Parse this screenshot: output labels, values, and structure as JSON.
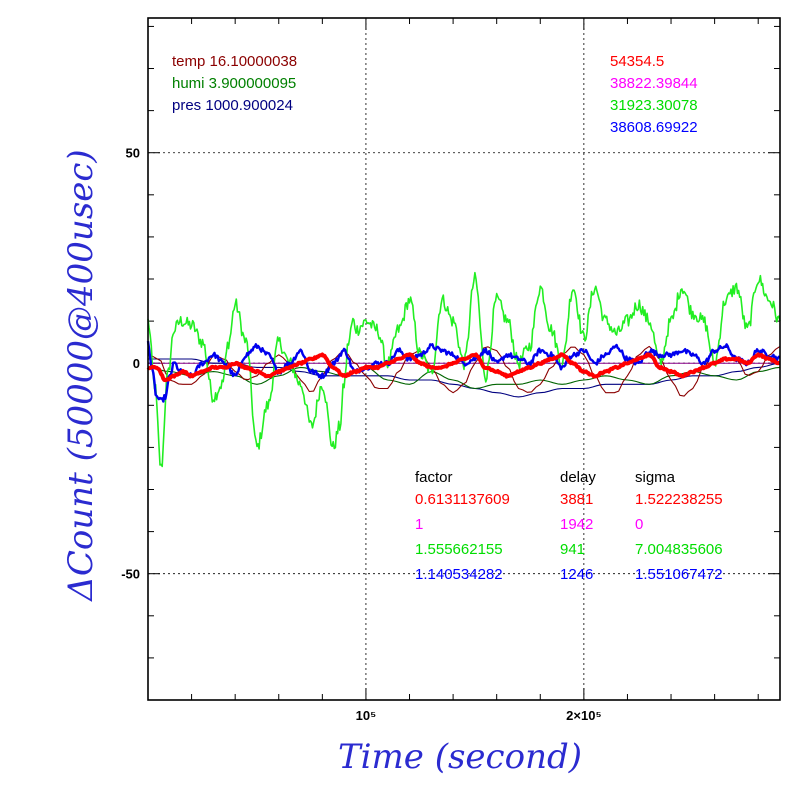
{
  "chart_data": {
    "type": "line",
    "xlabel": "Time (second)",
    "ylabel": "ΔCount (50000@400usec)",
    "xlim": [
      0,
      290000
    ],
    "ylim": [
      -80,
      82
    ],
    "x_ticks": [
      {
        "value": 100000,
        "label": "10⁵"
      },
      {
        "value": 200000,
        "label": "2×10⁵"
      }
    ],
    "y_ticks": [
      {
        "value": 50,
        "label": "50"
      },
      {
        "value": 0,
        "label": "0"
      },
      {
        "value": -50,
        "label": "-50"
      }
    ],
    "grid": true,
    "env": [
      {
        "label": "temp 16.10000038",
        "color": "#8b0000"
      },
      {
        "label": "humi 3.900000095",
        "color": "#008000"
      },
      {
        "label": "pres 1000.900024",
        "color": "#000080"
      }
    ],
    "counts": [
      {
        "label": "54354.5",
        "color": "#ff0000"
      },
      {
        "label": "38822.39844",
        "color": "#ff00ff"
      },
      {
        "label": "31923.30078",
        "color": "#00dd00"
      },
      {
        "label": "38608.69922",
        "color": "#0000ff"
      }
    ],
    "fit_table": {
      "headers": [
        "factor",
        "delay",
        "sigma"
      ],
      "rows": [
        {
          "factor": "0.6131137609",
          "delay": "3881",
          "sigma": "1.522238255",
          "color": "#ff0000"
        },
        {
          "factor": "1",
          "delay": "1942",
          "sigma": "0",
          "color": "#ff00ff"
        },
        {
          "factor": "1.555662155",
          "delay": "941",
          "sigma": "7.004835606",
          "color": "#00dd00"
        },
        {
          "factor": "1.140534282",
          "delay": "1246",
          "sigma": "1.551067472",
          "color": "#0000ff"
        }
      ]
    },
    "series": [
      {
        "key": "green",
        "color": "#22ee22",
        "width": 1.6,
        "noise": 1.6,
        "x": [
          0,
          3000,
          6000,
          9000,
          12000,
          15000,
          20000,
          25000,
          30000,
          34000,
          37000,
          40000,
          45000,
          50000,
          55000,
          60000,
          65000,
          70000,
          75000,
          80000,
          85000,
          88000,
          90000,
          92000,
          94000,
          96000,
          98000,
          100000,
          105000,
          110000,
          115000,
          120000,
          125000,
          130000,
          135000,
          140000,
          145000,
          150000,
          155000,
          160000,
          165000,
          170000,
          175000,
          180000,
          185000,
          190000,
          195000,
          200000,
          205000,
          210000,
          215000,
          220000,
          225000,
          230000,
          235000,
          240000,
          245000,
          250000,
          255000,
          260000,
          265000,
          270000,
          275000,
          280000,
          285000,
          290000
        ],
        "y": [
          10,
          -5,
          -25,
          -3,
          8,
          10,
          9,
          5,
          -8,
          -5,
          5,
          14,
          5,
          -20,
          -10,
          5,
          0,
          -5,
          -15,
          -5,
          -20,
          -15,
          -5,
          5,
          10,
          8,
          9,
          10,
          8,
          0,
          8,
          15,
          2,
          -2,
          15,
          10,
          0,
          20,
          -3,
          15,
          10,
          0,
          4,
          18,
          8,
          0,
          18,
          6,
          18,
          10,
          7,
          10,
          14,
          10,
          0,
          10,
          18,
          12,
          10,
          0,
          15,
          18,
          8,
          20,
          15,
          10
        ]
      },
      {
        "key": "blue",
        "color": "#0000ee",
        "width": 2.4,
        "noise": 0.6,
        "x": [
          0,
          2000,
          4000,
          6000,
          8000,
          10000,
          12000,
          15000,
          20000,
          25000,
          30000,
          35000,
          40000,
          45000,
          50000,
          55000,
          60000,
          65000,
          70000,
          75000,
          80000,
          85000,
          90000,
          95000,
          100000,
          105000,
          110000,
          115000,
          120000,
          125000,
          130000,
          135000,
          140000,
          145000,
          150000,
          155000,
          160000,
          165000,
          170000,
          175000,
          180000,
          185000,
          190000,
          195000,
          200000,
          205000,
          210000,
          215000,
          220000,
          225000,
          230000,
          235000,
          240000,
          245000,
          250000,
          255000,
          260000,
          265000,
          270000,
          275000,
          280000,
          285000,
          290000
        ],
        "y": [
          5,
          -2,
          -8,
          -9,
          -8,
          -3,
          0,
          -2,
          -3,
          0,
          2,
          0,
          -3,
          2,
          4,
          2,
          -2,
          0,
          3,
          -2,
          -3,
          0,
          3,
          -2,
          -1,
          0,
          0,
          3,
          1,
          2,
          4,
          3,
          2,
          0,
          1,
          3,
          0,
          2,
          1,
          0,
          3,
          2,
          -1,
          2,
          3,
          0,
          2,
          4,
          1,
          0,
          3,
          2,
          2,
          3,
          2,
          0,
          3,
          4,
          1,
          0,
          3,
          2,
          1
        ]
      },
      {
        "key": "red",
        "color": "#ff0000",
        "width": 4,
        "noise": 0.2,
        "x": [
          0,
          4000,
          8000,
          12000,
          16000,
          20000,
          25000,
          30000,
          35000,
          40000,
          45000,
          50000,
          55000,
          60000,
          65000,
          70000,
          75000,
          80000,
          85000,
          90000,
          95000,
          100000,
          105000,
          110000,
          115000,
          120000,
          125000,
          130000,
          135000,
          140000,
          145000,
          150000,
          155000,
          160000,
          165000,
          170000,
          175000,
          180000,
          185000,
          190000,
          195000,
          200000,
          205000,
          210000,
          215000,
          220000,
          225000,
          230000,
          235000,
          240000,
          245000,
          250000,
          255000,
          260000,
          265000,
          270000,
          275000,
          280000,
          285000,
          290000
        ],
        "y": [
          -1,
          -1,
          -4,
          -3,
          -2,
          -3,
          -2,
          -1,
          -1,
          0,
          -1,
          -2,
          -3,
          -2,
          -1,
          0,
          1,
          2,
          -1,
          -3,
          -2,
          -1,
          -1,
          0,
          1,
          2,
          0,
          -1,
          -1,
          0,
          1,
          2,
          -1,
          -2,
          -3,
          -2,
          -1,
          0,
          1,
          2,
          0,
          -2,
          -3,
          -2,
          -1,
          0,
          1,
          2,
          -1,
          -2,
          -3,
          -2,
          -1,
          0,
          1,
          1,
          0,
          2,
          1,
          0
        ]
      },
      {
        "key": "darkred",
        "color": "#8b0000",
        "width": 1.1,
        "noise": 0,
        "x": [
          0,
          5000,
          10000,
          15000,
          20000,
          25000,
          30000,
          35000,
          40000,
          45000,
          50000,
          55000,
          60000,
          65000,
          70000,
          75000,
          80000,
          85000,
          90000,
          95000,
          100000,
          105000,
          110000,
          115000,
          120000,
          125000,
          130000,
          135000,
          140000,
          145000,
          150000,
          155000,
          160000,
          165000,
          170000,
          175000,
          180000,
          185000,
          190000,
          195000,
          200000,
          205000,
          210000,
          215000,
          220000,
          225000,
          230000,
          235000,
          240000,
          245000,
          250000,
          255000,
          260000,
          265000,
          270000,
          275000,
          280000,
          285000,
          290000
        ],
        "y": [
          2,
          1,
          -4,
          -5,
          -5,
          -3,
          2,
          1,
          -2,
          -4,
          -3,
          0,
          2,
          0,
          -4,
          -7,
          -3,
          1,
          3,
          0,
          -3,
          -6,
          -6,
          -2,
          2,
          3,
          -1,
          -5,
          -7,
          -5,
          0,
          4,
          3,
          -1,
          -6,
          -7,
          -5,
          -1,
          2,
          4,
          2,
          -3,
          -7,
          -7,
          -3,
          2,
          4,
          1,
          -4,
          -8,
          -6,
          -1,
          3,
          4,
          1,
          -3,
          -2,
          2,
          4
        ]
      },
      {
        "key": "darkgreen",
        "color": "#006400",
        "width": 1.1,
        "noise": 0,
        "x": [
          0,
          10000,
          20000,
          30000,
          40000,
          50000,
          60000,
          70000,
          80000,
          90000,
          100000,
          110000,
          120000,
          130000,
          140000,
          150000,
          160000,
          170000,
          180000,
          190000,
          200000,
          210000,
          220000,
          230000,
          240000,
          250000,
          260000,
          270000,
          280000,
          290000
        ],
        "y": [
          -1,
          -2,
          -3,
          -2,
          -3,
          -5,
          -3,
          -1,
          -2,
          -3,
          -1,
          -4,
          -5,
          -2,
          -4,
          -6,
          -5,
          -5,
          -4,
          -5,
          -4,
          -3,
          -4,
          -5,
          -3,
          -2,
          -3,
          -4,
          -2,
          -1
        ]
      },
      {
        "key": "navy",
        "color": "#000080",
        "width": 1.1,
        "noise": 0,
        "x": [
          0,
          10000,
          20000,
          30000,
          40000,
          50000,
          60000,
          70000,
          80000,
          90000,
          100000,
          110000,
          120000,
          130000,
          140000,
          150000,
          160000,
          170000,
          180000,
          190000,
          200000,
          210000,
          220000,
          230000,
          240000,
          250000,
          260000,
          270000,
          280000,
          290000
        ],
        "y": [
          1,
          1,
          1,
          0,
          0,
          -1,
          -1,
          -2,
          -3,
          -3,
          -3,
          -3,
          -4,
          -4,
          -5,
          -6,
          -7,
          -8,
          -7,
          -6,
          -6,
          -5,
          -5,
          -5,
          -4,
          -3,
          -3,
          -2,
          -1,
          0
        ]
      },
      {
        "key": "violet",
        "color": "#880088",
        "width": 1,
        "noise": 0,
        "x": [
          0,
          290000
        ],
        "y": [
          0,
          0
        ]
      }
    ]
  }
}
